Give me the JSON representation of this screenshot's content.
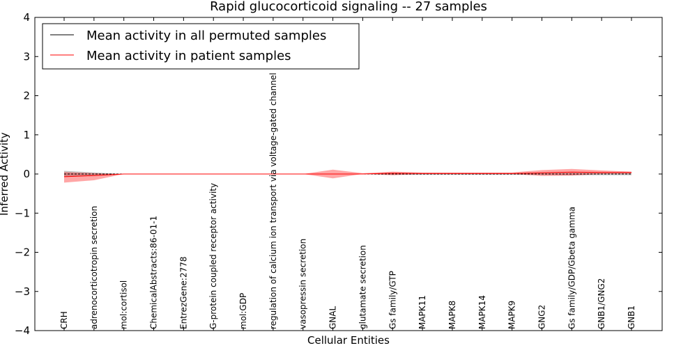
{
  "chart_data": {
    "type": "line",
    "title": "Rapid glucocorticoid signaling -- 27 samples",
    "xlabel": "Cellular Entities",
    "ylabel": "Inferred Activity",
    "ylim": [
      -4,
      4
    ],
    "yticks": [
      "4",
      "3",
      "2",
      "1",
      "0",
      "−1",
      "−2",
      "−3",
      "−4"
    ],
    "yticks_values": [
      4,
      3,
      2,
      1,
      0,
      -1,
      -2,
      -3,
      -4
    ],
    "categories": [
      "CRH",
      "adrenocorticotropin secretion",
      "mol:cortisol",
      "ChemicalAbstracts:86-01-1",
      "EntrezGene:2778",
      "G-protein coupled receptor activity",
      "mol:GDP",
      "regulation of calcium ion transport via voltage-gated channel",
      "vasopressin secretion",
      "GNAL",
      "glutamate secretion",
      "Gs family/GTP",
      "MAPK11",
      "MAPK8",
      "MAPK14",
      "MAPK9",
      "GNG2",
      "Gs family/GDP/Gbeta gamma",
      "GNB1/GNG2",
      "GNB1"
    ],
    "series": [
      {
        "name": "Mean activity in all permuted samples",
        "color": "#000000",
        "values": [
          0.0,
          0.0,
          0.0,
          0.0,
          0.0,
          0.0,
          0.0,
          0.0,
          0.0,
          0.0,
          0.0,
          0.0,
          0.0,
          0.0,
          0.0,
          0.0,
          0.0,
          0.0,
          0.0,
          0.0
        ],
        "band_upper": [
          0.08,
          0.04,
          0.0,
          0.0,
          0.0,
          0.0,
          0.0,
          0.0,
          0.0,
          0.0,
          0.0,
          0.02,
          0.02,
          0.02,
          0.02,
          0.02,
          0.02,
          0.03,
          0.03,
          0.03
        ],
        "band_lower": [
          -0.08,
          -0.04,
          0.0,
          0.0,
          0.0,
          0.0,
          0.0,
          0.0,
          0.0,
          0.0,
          0.0,
          -0.02,
          -0.02,
          -0.02,
          -0.02,
          -0.02,
          -0.02,
          -0.03,
          -0.03,
          -0.03
        ]
      },
      {
        "name": "Mean activity in patient samples",
        "color": "#ff0000",
        "values": [
          -0.07,
          -0.04,
          0.0,
          0.0,
          0.0,
          0.0,
          0.0,
          0.0,
          0.0,
          0.0,
          0.0,
          0.02,
          0.01,
          0.01,
          0.01,
          0.01,
          0.03,
          0.05,
          0.04,
          0.04
        ],
        "band_upper": [
          0.05,
          0.02,
          0.0,
          0.0,
          0.0,
          0.0,
          0.0,
          0.0,
          0.0,
          0.11,
          0.02,
          0.06,
          0.04,
          0.04,
          0.04,
          0.04,
          0.1,
          0.13,
          0.09,
          0.06
        ],
        "band_lower": [
          -0.22,
          -0.16,
          0.0,
          0.0,
          0.0,
          0.0,
          0.0,
          0.0,
          0.0,
          -0.11,
          0.0,
          -0.03,
          0.0,
          0.0,
          0.0,
          0.0,
          -0.05,
          -0.04,
          0.0,
          0.01
        ]
      }
    ],
    "legend_position": "top-left",
    "grid": false
  },
  "colors": {
    "band_red": "#ff0000",
    "band_gray": "#808080",
    "permuted_line": "#000000",
    "patient_line": "#ff0000"
  }
}
